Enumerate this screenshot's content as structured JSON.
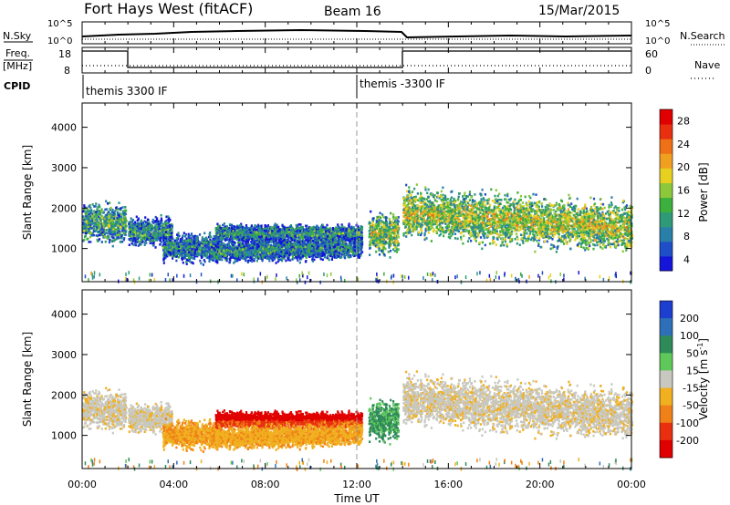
{
  "header": {
    "radar": "Fort Hays West (fitACF)",
    "beam": "Beam 16",
    "date": "15/Mar/2015"
  },
  "top_panels": {
    "nsky_label": "N.Sky",
    "nsky_ticks": [
      "10^5",
      "10^0"
    ],
    "nsearch_label": "N.Search",
    "nsearch_ticks": [
      "10^5",
      "10^0"
    ],
    "freq_label": "Freq.",
    "freq_unit": "[MHz]",
    "freq_ticks": [
      "18",
      "8"
    ],
    "nave_label": "Nave",
    "nave_ticks": [
      "60",
      "0"
    ],
    "cpid_label": "CPID",
    "cpid_entries": [
      {
        "start_hour": 0,
        "label": "themis 3300 IF"
      },
      {
        "start_hour": 12,
        "label": "themis -3300 IF"
      }
    ]
  },
  "chart_data": [
    {
      "type": "heatmap",
      "panel": "power",
      "title": "",
      "xlabel": "",
      "ylabel": "Slant Range [km]",
      "x_ticks": [
        "00:00",
        "04:00",
        "08:00",
        "12:00",
        "16:00",
        "20:00",
        "00:00"
      ],
      "xlim_hours": [
        0,
        24
      ],
      "y_ticks": [
        1000,
        2000,
        3000,
        4000
      ],
      "ylim": [
        180,
        4600
      ],
      "colorbar": {
        "label": "Power [dB]",
        "ticks": [
          4,
          8,
          12,
          16,
          20,
          24,
          28
        ],
        "colors": [
          "#1515d9",
          "#1f4fc8",
          "#2a7fa8",
          "#2f9a78",
          "#3caf3c",
          "#8cc83a",
          "#e8d020",
          "#f0a020",
          "#f07018",
          "#e83010",
          "#e00000"
        ]
      },
      "scatter_bands": [
        {
          "t0": 0.0,
          "t1": 1.9,
          "center_km": 1650,
          "half_width_km": 350,
          "mean_db": 12
        },
        {
          "t0": 2.0,
          "t1": 3.9,
          "center_km": 1450,
          "half_width_km": 250,
          "mean_db": 10
        },
        {
          "t0": 3.5,
          "t1": 6.0,
          "center_km": 1050,
          "half_width_km": 250,
          "mean_db": 9
        },
        {
          "t0": 5.8,
          "t1": 12.2,
          "center_km": 1400,
          "half_width_km": 150,
          "mean_db": 10
        },
        {
          "t0": 5.8,
          "t1": 12.2,
          "center_km": 950,
          "half_width_km": 200,
          "mean_db": 9
        },
        {
          "t0": 12.5,
          "t1": 13.8,
          "center_km": 1400,
          "half_width_km": 350,
          "mean_db": 15
        },
        {
          "t0": 14.0,
          "t1": 24.0,
          "center_km": 1900,
          "half_width_km": 450,
          "mean_db": 16
        }
      ]
    },
    {
      "type": "heatmap",
      "panel": "velocity",
      "title": "",
      "xlabel": "Time UT",
      "ylabel": "Slant Range [km]",
      "x_ticks": [
        "00:00",
        "04:00",
        "08:00",
        "12:00",
        "16:00",
        "20:00",
        "00:00"
      ],
      "xlim_hours": [
        0,
        24
      ],
      "y_ticks": [
        1000,
        2000,
        3000,
        4000
      ],
      "ylim": [
        180,
        4600
      ],
      "colorbar": {
        "label": "Velocity [m s^-1]",
        "ticks": [
          "200",
          "100",
          "50",
          "15",
          "-15",
          "-50",
          "-100",
          "-200"
        ],
        "colors": [
          "#1c3fd0",
          "#2f6fb8",
          "#2f8a5a",
          "#5fc85a",
          "#c8c8c0",
          "#f0b020",
          "#f08018",
          "#e83010",
          "#e00000"
        ]
      },
      "ground_scatter_color": "#c8c8c0"
    }
  ]
}
